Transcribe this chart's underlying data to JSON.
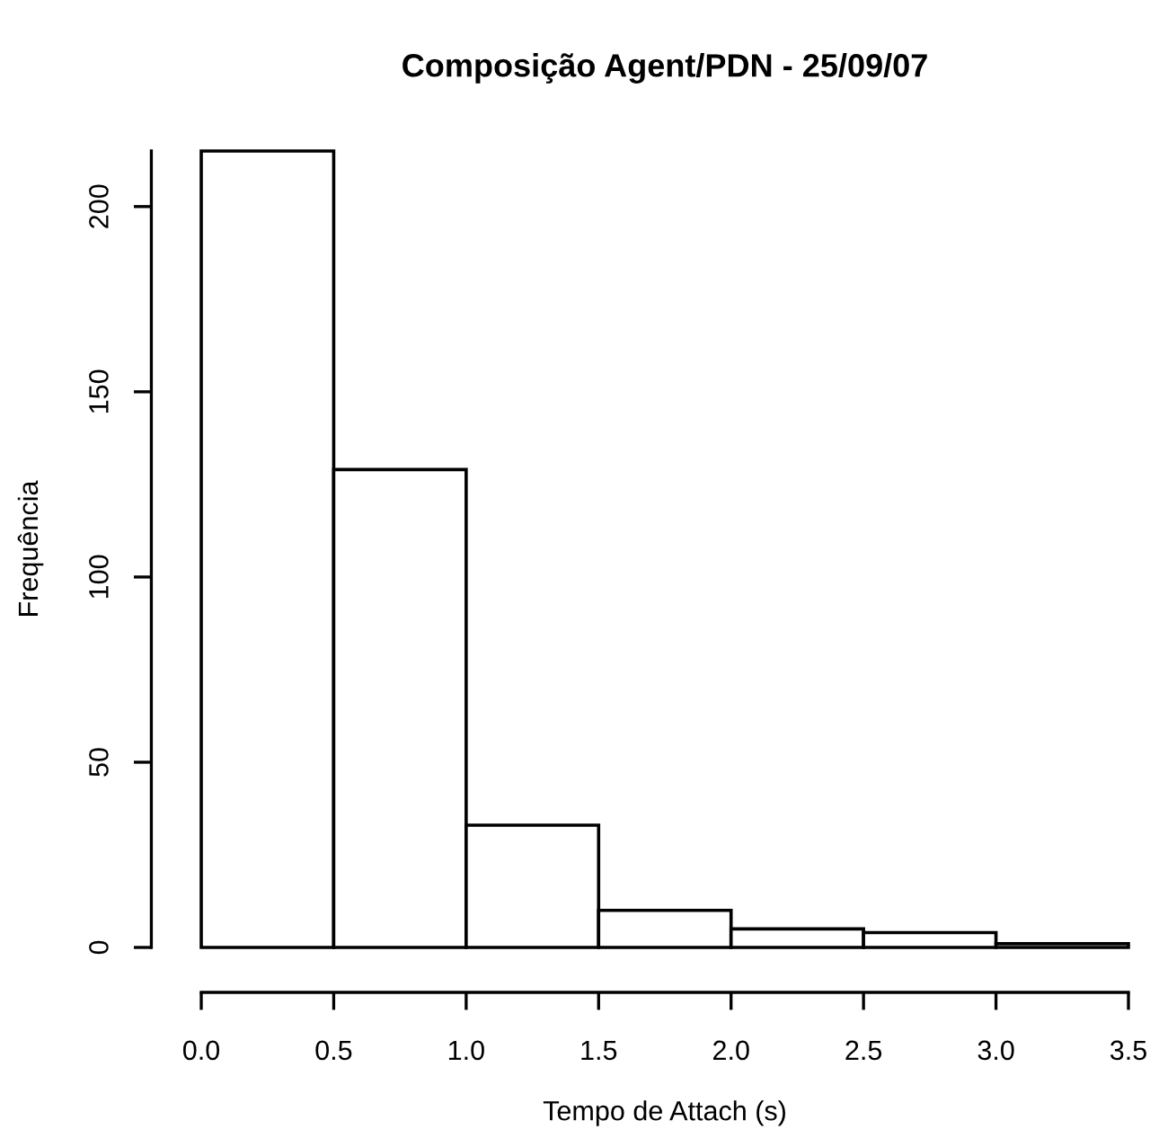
{
  "chart_data": {
    "type": "histogram",
    "title": "Composição Agent/PDN - 25/09/07",
    "xlabel": "Tempo de Attach (s)",
    "ylabel": "Frequência",
    "bins": [
      0,
      0.5,
      1.0,
      1.5,
      2.0,
      2.5,
      3.0,
      3.5
    ],
    "values": [
      215,
      129,
      33,
      10,
      5,
      4,
      1
    ],
    "color": "#ffffff",
    "xlim": [
      0,
      3.5
    ],
    "ylim": [
      0,
      215
    ],
    "xticks": [
      {
        "value": 0,
        "label": "0.0"
      },
      0.5,
      {
        "value": 1,
        "label": "1.0"
      },
      1.5,
      {
        "value": 2,
        "label": "2.0"
      },
      2.5,
      {
        "value": 3,
        "label": "3.0"
      },
      3.5
    ],
    "yticks": [
      0,
      50,
      100,
      150,
      200
    ],
    "grid": false,
    "legend": false
  }
}
